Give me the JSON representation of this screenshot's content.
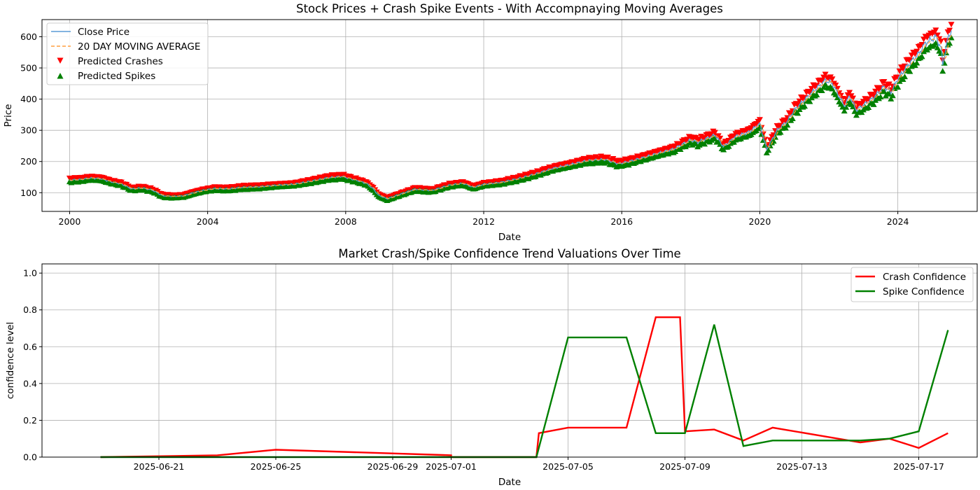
{
  "chart_data": [
    {
      "type": "line",
      "title": "Stock Prices + Crash Spike Events - With Accompnaying Moving Averages",
      "xlabel": "Date",
      "ylabel": "Price",
      "xlim": [
        1999.2,
        2026.3
      ],
      "ylim": [
        40,
        655
      ],
      "x_ticks": [
        2000,
        2004,
        2008,
        2012,
        2016,
        2020,
        2024
      ],
      "y_ticks": [
        100,
        200,
        300,
        400,
        500,
        600
      ],
      "grid": true,
      "legend_position": "upper left",
      "colors": {
        "close": "#5a9bd5",
        "ma": "#ff9f40",
        "crash": "#ff0000",
        "spike": "#008000"
      },
      "series": [
        {
          "name": "Close Price",
          "kind": "line",
          "points": [
            [
              2000.0,
              140
            ],
            [
              2000.3,
              142
            ],
            [
              2000.6,
              147
            ],
            [
              2000.9,
              145
            ],
            [
              2001.2,
              135
            ],
            [
              2001.5,
              128
            ],
            [
              2001.8,
              112
            ],
            [
              2002.1,
              115
            ],
            [
              2002.4,
              108
            ],
            [
              2002.7,
              90
            ],
            [
              2003.0,
              88
            ],
            [
              2003.3,
              90
            ],
            [
              2003.6,
              100
            ],
            [
              2003.9,
              108
            ],
            [
              2004.2,
              113
            ],
            [
              2004.6,
              112
            ],
            [
              2005.0,
              117
            ],
            [
              2005.5,
              119
            ],
            [
              2006.0,
              124
            ],
            [
              2006.5,
              127
            ],
            [
              2007.0,
              137
            ],
            [
              2007.5,
              148
            ],
            [
              2007.9,
              152
            ],
            [
              2008.3,
              140
            ],
            [
              2008.6,
              130
            ],
            [
              2008.8,
              112
            ],
            [
              2008.95,
              92
            ],
            [
              2009.2,
              80
            ],
            [
              2009.5,
              92
            ],
            [
              2010.0,
              111
            ],
            [
              2010.5,
              107
            ],
            [
              2011.0,
              124
            ],
            [
              2011.4,
              130
            ],
            [
              2011.7,
              117
            ],
            [
              2012.0,
              127
            ],
            [
              2012.5,
              133
            ],
            [
              2013.0,
              145
            ],
            [
              2013.5,
              160
            ],
            [
              2014.0,
              178
            ],
            [
              2014.5,
              190
            ],
            [
              2015.0,
              203
            ],
            [
              2015.5,
              207
            ],
            [
              2015.9,
              193
            ],
            [
              2016.2,
              200
            ],
            [
              2016.6,
              212
            ],
            [
              2017.0,
              225
            ],
            [
              2017.5,
              240
            ],
            [
              2018.0,
              270
            ],
            [
              2018.2,
              262
            ],
            [
              2018.7,
              285
            ],
            [
              2018.95,
              248
            ],
            [
              2019.3,
              280
            ],
            [
              2019.7,
              295
            ],
            [
              2020.0,
              322
            ],
            [
              2020.2,
              238
            ],
            [
              2020.5,
              300
            ],
            [
              2020.8,
              330
            ],
            [
              2021.0,
              365
            ],
            [
              2021.5,
              420
            ],
            [
              2021.9,
              460
            ],
            [
              2022.1,
              450
            ],
            [
              2022.45,
              378
            ],
            [
              2022.6,
              410
            ],
            [
              2022.8,
              365
            ],
            [
              2023.0,
              380
            ],
            [
              2023.3,
              405
            ],
            [
              2023.6,
              440
            ],
            [
              2023.8,
              422
            ],
            [
              2024.0,
              465
            ],
            [
              2024.3,
              510
            ],
            [
              2024.6,
              545
            ],
            [
              2024.8,
              580
            ],
            [
              2025.1,
              600
            ],
            [
              2025.25,
              565
            ],
            [
              2025.3,
              510
            ],
            [
              2025.45,
              595
            ],
            [
              2025.55,
              620
            ]
          ]
        },
        {
          "name": "20 DAY MOVING AVERAGE",
          "kind": "dashed-line"
        },
        {
          "name": "Predicted Crashes",
          "kind": "marker-down"
        },
        {
          "name": "Predicted Spikes",
          "kind": "marker-up"
        }
      ]
    },
    {
      "type": "line",
      "title": "Market Crash/Spike Confidence Trend Valuations Over Time",
      "xlabel": "Date",
      "ylabel": "confidence level",
      "xlim": [
        "2025-06-17",
        "2025-07-19"
      ],
      "ylim": [
        0,
        1.05
      ],
      "x_tick_labels": [
        "2025-06-21",
        "2025-06-25",
        "2025-06-29",
        "2025-07-01",
        "2025-07-05",
        "2025-07-09",
        "2025-07-13",
        "2025-07-17"
      ],
      "y_ticks": [
        "0.0",
        "0.2",
        "0.4",
        "0.6",
        "0.8",
        "1.0"
      ],
      "grid": true,
      "legend_position": "upper right",
      "series": [
        {
          "name": "Crash Confidence",
          "color": "#ff0000",
          "points": [
            [
              "2025-06-19",
              0.0
            ],
            [
              "2025-06-23",
              0.01
            ],
            [
              "2025-06-25",
              0.04
            ],
            [
              "2025-07-01",
              0.01
            ],
            [
              "2025-07-01",
              0.0
            ],
            [
              "2025-07-03T22:00",
              0.0
            ],
            [
              "2025-07-04T00:00",
              0.13
            ],
            [
              "2025-07-05",
              0.16
            ],
            [
              "2025-07-07",
              0.16
            ],
            [
              "2025-07-08",
              0.76
            ],
            [
              "2025-07-08T20:00",
              0.76
            ],
            [
              "2025-07-09",
              0.14
            ],
            [
              "2025-07-10",
              0.15
            ],
            [
              "2025-07-11",
              0.09
            ],
            [
              "2025-07-12",
              0.16
            ],
            [
              "2025-07-15",
              0.08
            ],
            [
              "2025-07-16",
              0.1
            ],
            [
              "2025-07-17",
              0.05
            ],
            [
              "2025-07-18",
              0.13
            ]
          ]
        },
        {
          "name": "Spike Confidence",
          "color": "#008000",
          "points": [
            [
              "2025-06-19",
              0.0
            ],
            [
              "2025-07-03T22:00",
              0.0
            ],
            [
              "2025-07-05",
              0.65
            ],
            [
              "2025-07-07",
              0.65
            ],
            [
              "2025-07-08",
              0.13
            ],
            [
              "2025-07-09",
              0.13
            ],
            [
              "2025-07-10",
              0.72
            ],
            [
              "2025-07-11",
              0.06
            ],
            [
              "2025-07-12",
              0.09
            ],
            [
              "2025-07-15",
              0.09
            ],
            [
              "2025-07-16",
              0.1
            ],
            [
              "2025-07-17",
              0.14
            ],
            [
              "2025-07-18",
              0.69
            ]
          ]
        }
      ]
    }
  ]
}
